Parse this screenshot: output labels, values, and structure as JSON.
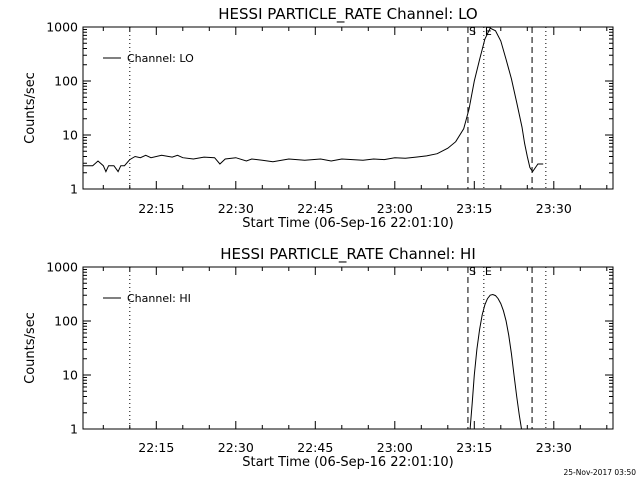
{
  "chart_data": [
    {
      "type": "line",
      "title": "HESSI PARTICLE_RATE Channel: LO",
      "xlabel": "Start Time (06-Sep-16 22:01:10)",
      "ylabel": "Counts/sec",
      "scale": "log-y",
      "xlim_minutes_of_day": [
        1321.17,
        1421.17
      ],
      "ylim": [
        1,
        1000
      ],
      "xticks": [
        {
          "label": "22:15",
          "value": 1335
        },
        {
          "label": "22:30",
          "value": 1350
        },
        {
          "label": "22:45",
          "value": 1365
        },
        {
          "label": "23:00",
          "value": 1380
        },
        {
          "label": "23:15",
          "value": 1395
        },
        {
          "label": "23:30",
          "value": 1410
        }
      ],
      "yticks": [
        {
          "label": "1",
          "value": 1
        },
        {
          "label": "10",
          "value": 10
        },
        {
          "label": "100",
          "value": 100
        },
        {
          "label": "1000",
          "value": 1000
        }
      ],
      "legend": {
        "label": "Channel: LO",
        "placement": "top-left"
      },
      "markers": [
        {
          "label": "S",
          "value": 1393.8,
          "style": "dashed"
        },
        {
          "label": "E",
          "value": 1396.8,
          "style": "dotted"
        }
      ],
      "vlines": [
        {
          "value": 1330.0,
          "style": "dotted"
        },
        {
          "value": 1393.8,
          "style": "dashed"
        },
        {
          "value": 1396.8,
          "style": "dotted"
        },
        {
          "value": 1405.9,
          "style": "dashed"
        },
        {
          "value": 1408.5,
          "style": "dotted"
        }
      ],
      "series": [
        {
          "x": [
            1321.2,
            1323.0,
            1324.0,
            1325.0,
            1325.5,
            1326.0,
            1327.0,
            1327.8,
            1328.3,
            1329.0,
            1330.0,
            1331.0,
            1332.0,
            1333.0,
            1334.0,
            1336.0,
            1338.0,
            1339.0,
            1340.0,
            1342.0,
            1344.0,
            1346.0,
            1347.0,
            1348.0,
            1350.0,
            1352.0,
            1353.0,
            1355.0,
            1357.0,
            1360.0,
            1363.0,
            1366.0,
            1368.0,
            1370.0,
            1372.0,
            1374.0,
            1376.0,
            1378.0,
            1380.0,
            1382.0,
            1384.0,
            1386.0,
            1388.0,
            1390.0,
            1391.5,
            1393.0,
            1394.0,
            1395.0,
            1396.0,
            1397.0,
            1398.0,
            1399.0,
            1400.0,
            1401.0,
            1402.0,
            1403.0,
            1404.0,
            1404.5,
            1405.0,
            1405.5,
            1406.0,
            1407.0,
            1408.0
          ],
          "y": [
            2.7,
            2.7,
            3.3,
            2.7,
            2.1,
            2.7,
            2.7,
            2.1,
            2.7,
            2.7,
            3.5,
            4.0,
            3.8,
            4.2,
            3.8,
            4.2,
            3.9,
            4.2,
            3.8,
            3.6,
            3.9,
            3.8,
            2.9,
            3.6,
            3.8,
            3.3,
            3.6,
            3.4,
            3.2,
            3.6,
            3.4,
            3.6,
            3.3,
            3.6,
            3.5,
            3.4,
            3.6,
            3.5,
            3.8,
            3.7,
            3.9,
            4.1,
            4.5,
            5.7,
            7.5,
            13,
            30,
            100,
            250,
            600,
            950,
            850,
            550,
            250,
            110,
            40,
            14,
            7,
            4,
            2.5,
            2.1,
            2.9,
            2.9
          ]
        }
      ]
    },
    {
      "type": "line",
      "title": "HESSI PARTICLE_RATE Channel: HI",
      "xlabel": "Start Time (06-Sep-16 22:01:10)",
      "ylabel": "Counts/sec",
      "scale": "log-y",
      "xlim_minutes_of_day": [
        1321.17,
        1421.17
      ],
      "ylim": [
        1,
        1000
      ],
      "xticks": [
        {
          "label": "22:15",
          "value": 1335
        },
        {
          "label": "22:30",
          "value": 1350
        },
        {
          "label": "22:45",
          "value": 1365
        },
        {
          "label": "23:00",
          "value": 1380
        },
        {
          "label": "23:15",
          "value": 1395
        },
        {
          "label": "23:30",
          "value": 1410
        }
      ],
      "yticks": [
        {
          "label": "1",
          "value": 1
        },
        {
          "label": "10",
          "value": 10
        },
        {
          "label": "100",
          "value": 100
        },
        {
          "label": "1000",
          "value": 1000
        }
      ],
      "legend": {
        "label": "Channel: HI",
        "placement": "top-left"
      },
      "markers": [
        {
          "label": "S",
          "value": 1393.8,
          "style": "dashed"
        },
        {
          "label": "E",
          "value": 1396.8,
          "style": "dotted"
        }
      ],
      "vlines": [
        {
          "value": 1330.0,
          "style": "dotted"
        },
        {
          "value": 1393.8,
          "style": "dashed"
        },
        {
          "value": 1396.8,
          "style": "dotted"
        },
        {
          "value": 1405.9,
          "style": "dashed"
        },
        {
          "value": 1408.5,
          "style": "dotted"
        }
      ],
      "series": [
        {
          "x": [
            1394.2,
            1394.6,
            1395.0,
            1395.5,
            1396.0,
            1396.5,
            1397.0,
            1397.5,
            1398.0,
            1398.5,
            1399.0,
            1399.5,
            1400.0,
            1400.5,
            1401.0,
            1401.5,
            1402.0,
            1402.5,
            1403.0,
            1403.5,
            1403.9
          ],
          "y": [
            1,
            3,
            10,
            30,
            70,
            130,
            200,
            260,
            300,
            310,
            295,
            260,
            210,
            155,
            100,
            55,
            25,
            10,
            4,
            1.8,
            1
          ]
        }
      ]
    }
  ],
  "footer": {
    "timestamp": "25-Nov-2017 03:50"
  }
}
